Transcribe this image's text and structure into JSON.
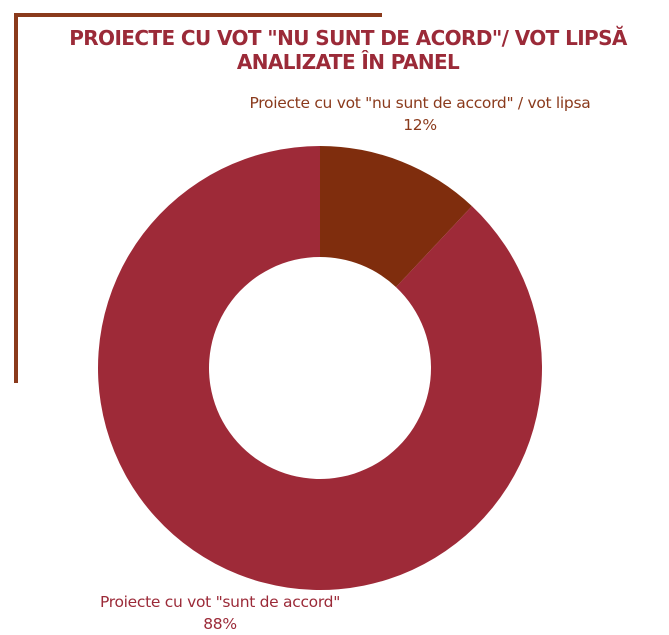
{
  "chart_data": {
    "type": "pie",
    "title": "PROIECTE CU VOT \"NU SUNT DE ACORD\"/ VOT LIPSĂ ANALIZATE ÎN PANEL",
    "donut": true,
    "slices": [
      {
        "label": "Proiecte cu vot \"nu sunt de accord\" / vot lipsa",
        "value": 12,
        "value_label": "12%",
        "color": "#7f2d0d"
      },
      {
        "label": "Proiecte cu vot \"sunt de accord\"",
        "value": 88,
        "value_label": "88%",
        "color": "#9e2a38"
      }
    ]
  }
}
